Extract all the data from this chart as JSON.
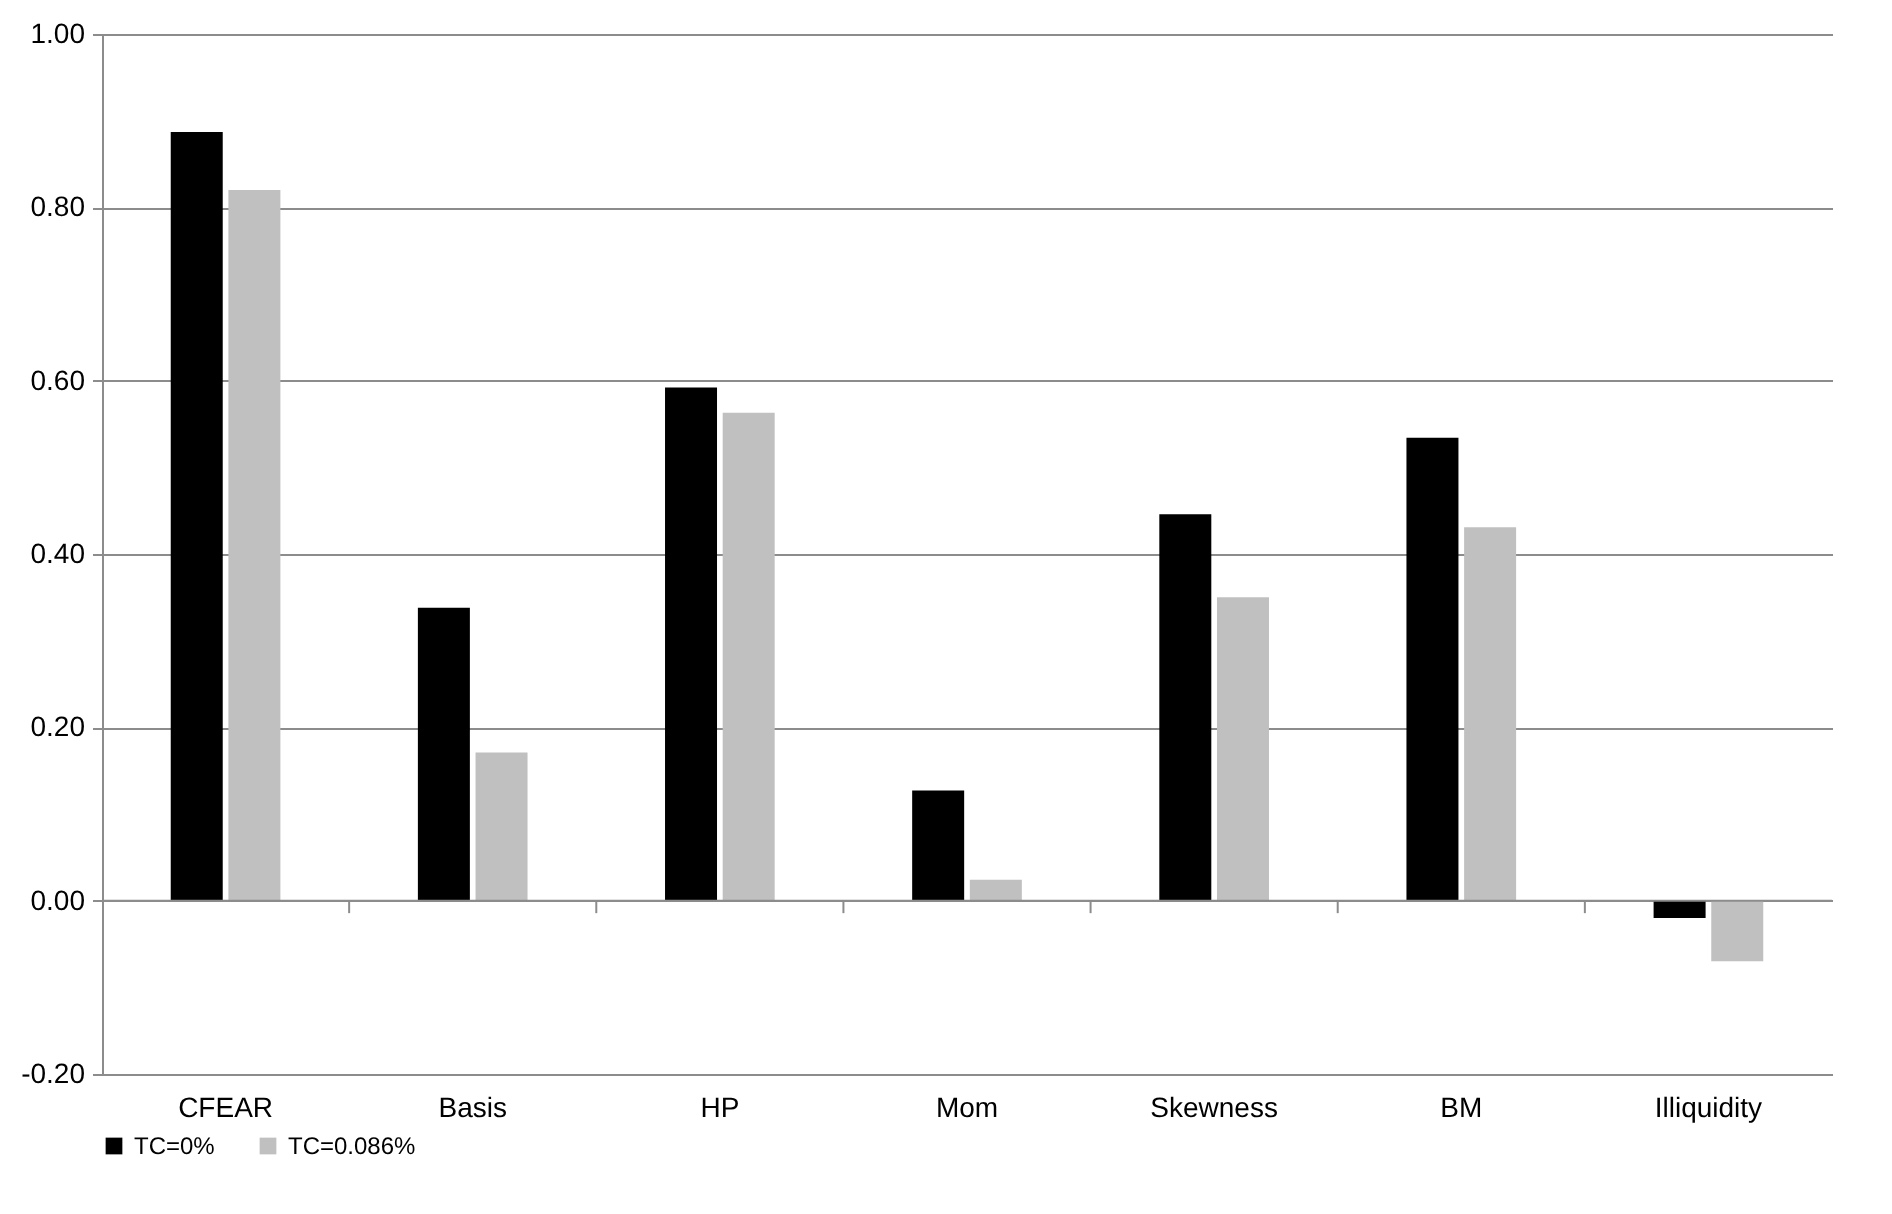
{
  "chart_data": {
    "type": "bar",
    "categories": [
      "CFEAR",
      "Basis",
      "HP",
      "Mom",
      "Skewness",
      "BM",
      "Illiquidity"
    ],
    "series": [
      {
        "name": "TC=0%",
        "color": "#000000",
        "values": [
          0.887,
          0.338,
          0.592,
          0.127,
          0.446,
          0.534,
          -0.02
        ]
      },
      {
        "name": "TC=0.086%",
        "color": "#c0c0c0",
        "values": [
          0.82,
          0.171,
          0.563,
          0.024,
          0.35,
          0.431,
          -0.07
        ]
      }
    ],
    "ylim": [
      -0.2,
      1.0
    ],
    "yticks": [
      {
        "value": -0.2,
        "label": "-0.20"
      },
      {
        "value": 0,
        "label": "0.00"
      },
      {
        "value": 0.2,
        "label": "0.20"
      },
      {
        "value": 0.4,
        "label": "0.40"
      },
      {
        "value": 0.6,
        "label": "0.60"
      },
      {
        "value": 0.8,
        "label": "0.80"
      },
      {
        "value": 1.0,
        "label": "1.00"
      }
    ],
    "grid": "y",
    "legend": "bottom"
  }
}
